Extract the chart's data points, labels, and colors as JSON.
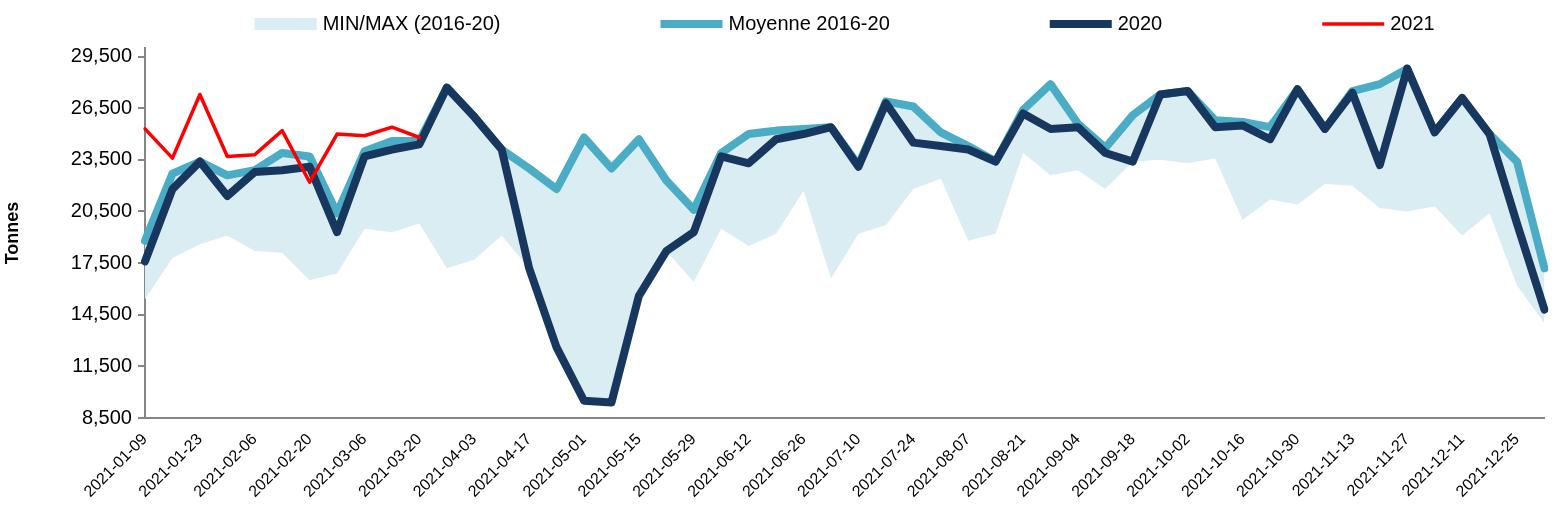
{
  "chart_data": {
    "type": "line",
    "categories": [
      "2021-01-09",
      null,
      "2021-01-23",
      null,
      "2021-02-06",
      null,
      "2021-02-20",
      null,
      "2021-03-06",
      null,
      "2021-03-20",
      null,
      "2021-04-03",
      null,
      "2021-04-17",
      null,
      "2021-05-01",
      null,
      "2021-05-15",
      null,
      "2021-05-29",
      null,
      "2021-06-12",
      null,
      "2021-06-26",
      null,
      "2021-07-10",
      null,
      "2021-07-24",
      null,
      "2021-08-07",
      null,
      "2021-08-21",
      null,
      "2021-09-04",
      null,
      "2021-09-18",
      null,
      "2021-10-02",
      null,
      "2021-10-16",
      null,
      "2021-10-30",
      null,
      "2021-11-13",
      null,
      "2021-11-27",
      null,
      "2021-12-11",
      null,
      "2021-12-25",
      null
    ],
    "series": [
      {
        "name": "MIN/MAX (2016-20)",
        "type": "area",
        "color": "#daedf3",
        "values": [
          null,
          null,
          null,
          null,
          null,
          null,
          null,
          null,
          null,
          null,
          null,
          null,
          null,
          null,
          null,
          null,
          null,
          null,
          null,
          null,
          null,
          null,
          null,
          null,
          null,
          null,
          null,
          null,
          null,
          null,
          null,
          null,
          null,
          null,
          null,
          null,
          null,
          null,
          null,
          null,
          null,
          null,
          null,
          null,
          null,
          null,
          null,
          null,
          null,
          null,
          null,
          null
        ],
        "lower": [
          15400,
          17800,
          18600,
          19100,
          18200,
          18100,
          16500,
          16900,
          19500,
          19300,
          19800,
          17200,
          17700,
          19100,
          17200,
          12600,
          9500,
          9400,
          15600,
          18200,
          16400,
          19500,
          18500,
          19200,
          21700,
          16600,
          19200,
          19700,
          21800,
          22400,
          18800,
          19200,
          23900,
          22600,
          22900,
          21800,
          23400,
          23500,
          23300,
          23600,
          20000,
          21200,
          20900,
          22100,
          22000,
          20700,
          20500,
          20800,
          19100,
          20400,
          16200,
          14000
        ],
        "upper": [
          18800,
          22700,
          23400,
          22600,
          22900,
          23900,
          23700,
          20400,
          24000,
          24600,
          24600,
          27700,
          26000,
          24100,
          23000,
          21800,
          24800,
          23000,
          24700,
          22300,
          20600,
          23900,
          25000,
          25200,
          25300,
          25400,
          23200,
          26900,
          26600,
          25100,
          24300,
          23400,
          26400,
          27900,
          25600,
          24200,
          26100,
          27300,
          27500,
          25800,
          25700,
          25400,
          27600,
          25300,
          27500,
          27900,
          28800,
          25100,
          27100,
          25000,
          23400,
          17200
        ]
      },
      {
        "name": "Moyenne 2016-20",
        "type": "line",
        "color": "#4bacc6",
        "values": [
          18800,
          22700,
          23400,
          22600,
          22900,
          23900,
          23700,
          20400,
          24000,
          24600,
          24600,
          27700,
          26000,
          24100,
          23000,
          21800,
          24800,
          23000,
          24700,
          22300,
          20600,
          23900,
          25000,
          25200,
          25300,
          25400,
          23200,
          26900,
          26600,
          25100,
          24300,
          23400,
          26400,
          27900,
          25600,
          24200,
          26100,
          27300,
          27500,
          25800,
          25700,
          25400,
          27600,
          25300,
          27500,
          27900,
          28800,
          25100,
          27100,
          25000,
          23400,
          17200
        ]
      },
      {
        "name": "2020",
        "type": "line",
        "color": "#17375e",
        "values": [
          17600,
          21800,
          23400,
          21400,
          22800,
          22900,
          23100,
          19300,
          23700,
          24100,
          24400,
          27700,
          26000,
          24100,
          17200,
          12600,
          9500,
          9400,
          15600,
          18200,
          19300,
          23700,
          23300,
          24700,
          25000,
          25400,
          23100,
          26800,
          24500,
          24300,
          24100,
          23400,
          26200,
          25300,
          25400,
          23900,
          23400,
          27300,
          27500,
          25400,
          25500,
          24700,
          27600,
          25300,
          27400,
          23200,
          28800,
          25100,
          27100,
          25000,
          19800,
          14800
        ]
      },
      {
        "name": "2021",
        "type": "line",
        "color": "#ff0000",
        "values": [
          25300,
          23600,
          27300,
          23700,
          23800,
          25200,
          22200,
          25000,
          24900,
          25400,
          24800,
          null,
          null,
          null,
          null,
          null,
          null,
          null,
          null,
          null,
          null,
          null,
          null,
          null,
          null,
          null,
          null,
          null,
          null,
          null,
          null,
          null,
          null,
          null,
          null,
          null,
          null,
          null,
          null,
          null,
          null,
          null,
          null,
          null,
          null,
          null,
          null,
          null,
          null,
          null,
          null,
          null
        ]
      }
    ],
    "ylabel": "Tonnes",
    "ylim": [
      8500,
      30000
    ],
    "yticks": [
      {
        "value": 8500,
        "label": "8,500"
      },
      {
        "value": 11500,
        "label": "11,500"
      },
      {
        "value": 14500,
        "label": "14,500"
      },
      {
        "value": 17500,
        "label": "17,500"
      },
      {
        "value": 20500,
        "label": "20,500"
      },
      {
        "value": 23500,
        "label": "23,500"
      },
      {
        "value": 26500,
        "label": "26,500"
      },
      {
        "value": 29500,
        "label": "29,500"
      }
    ],
    "legend": "top"
  }
}
